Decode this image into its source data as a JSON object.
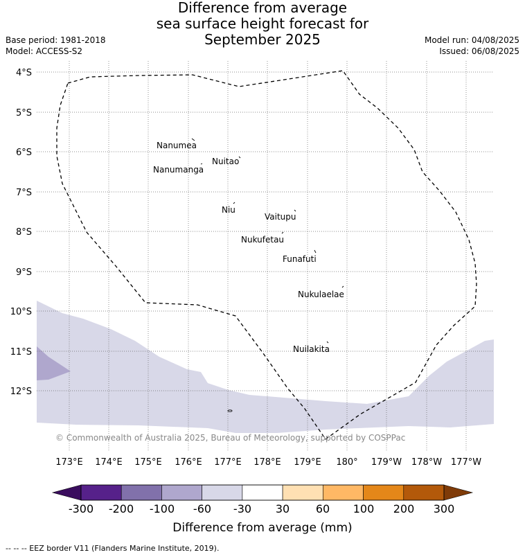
{
  "title": {
    "line1": "Difference from average",
    "line2": "sea surface height forecast for",
    "line3": "September 2025"
  },
  "meta": {
    "base_period": "Base period: 1981-2018",
    "model": "Model: ACCESS-S2",
    "model_run": "Model run: 04/08/2025",
    "issued": "Issued: 06/08/2025"
  },
  "map": {
    "lat_labels": [
      "4°S",
      "5°S",
      "6°S",
      "7°S",
      "8°S",
      "9°S",
      "10°S",
      "11°S",
      "12°S"
    ],
    "lon_labels": [
      "173°E",
      "174°E",
      "175°E",
      "176°E",
      "177°E",
      "178°E",
      "179°E",
      "180°",
      "179°W",
      "178°W",
      "177°W"
    ],
    "places": [
      "Nanumea",
      "Nuitao",
      "Nanumanga",
      "Niu",
      "Vaitupu",
      "Nukufetau",
      "Funafuti",
      "Nukulaelae",
      "Nuilakita"
    ],
    "copyright": "© Commonwealth of Australia 2025, Bureau of Meteorology, supported by COSPPac"
  },
  "legend": {
    "ticks": [
      "-300",
      "-200",
      "-100",
      "-60",
      "-30",
      "30",
      "60",
      "100",
      "200",
      "300"
    ],
    "colors": [
      "#56218a",
      "#8171ab",
      "#afa7cd",
      "#d8d8e8",
      "#ffffff",
      "#ffe0b3",
      "#ffb865",
      "#e48719",
      "#b3590a"
    ],
    "extend_low_color": "#3a0d5e",
    "extend_high_color": "#7f3b08",
    "label": "Difference from average (mm)"
  },
  "footer": "--  --  -- EEZ border V11 (Flanders Marine Institute, 2019)."
}
